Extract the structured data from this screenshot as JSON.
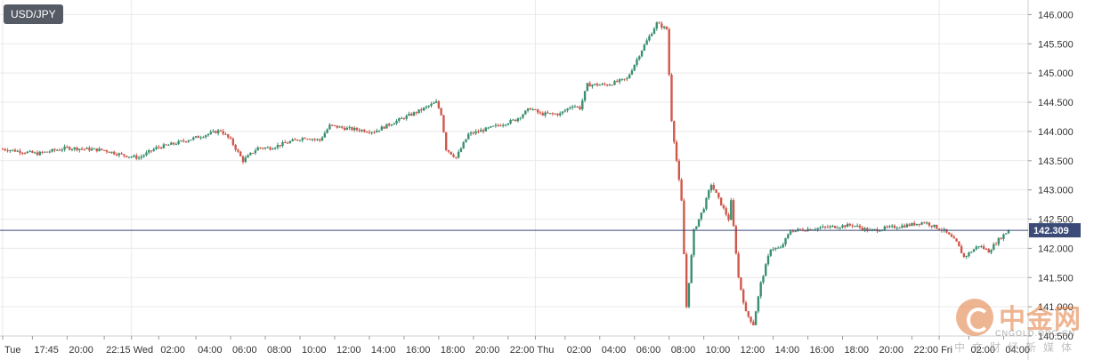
{
  "header": {
    "symbol": "USD/JPY"
  },
  "colors": {
    "up": "#3a8f6f",
    "down": "#d0584b",
    "last_line": "#3c4a78",
    "last_bg": "#3c4a78",
    "grid": "#e9e9e9",
    "text": "#333333"
  },
  "chart_data": {
    "type": "candlestick",
    "title": "USD/JPY",
    "last_price_label": "142.309",
    "last_price": 142.309,
    "ylim": [
      140.5,
      146.25
    ],
    "y_ticks": [
      {
        "value": 146.0,
        "label": "146.000"
      },
      {
        "value": 145.5,
        "label": "145.500"
      },
      {
        "value": 145.0,
        "label": "145.000"
      },
      {
        "value": 144.5,
        "label": "144.500"
      },
      {
        "value": 144.0,
        "label": "144.000"
      },
      {
        "value": 143.5,
        "label": "143.500"
      },
      {
        "value": 143.0,
        "label": "143.000"
      },
      {
        "value": 142.5,
        "label": "142.500"
      },
      {
        "value": 142.0,
        "label": "142.000"
      },
      {
        "value": 141.5,
        "label": "141.500"
      },
      {
        "value": 141.0,
        "label": "141.000"
      },
      {
        "value": 140.5,
        "label": "140.500"
      }
    ],
    "x_ticks": [
      {
        "index": 0,
        "label": "Tue"
      },
      {
        "index": 12,
        "label": "17:45"
      },
      {
        "index": 26,
        "label": "20:00"
      },
      {
        "index": 41,
        "label": "22:15"
      },
      {
        "index": 52,
        "label": "Wed"
      },
      {
        "index": 63,
        "label": "02:00"
      },
      {
        "index": 78,
        "label": "04:00"
      },
      {
        "index": 92,
        "label": "06:00"
      },
      {
        "index": 106,
        "label": "08:00"
      },
      {
        "index": 120,
        "label": "10:00"
      },
      {
        "index": 134,
        "label": "12:00"
      },
      {
        "index": 148,
        "label": "14:00"
      },
      {
        "index": 162,
        "label": "16:00"
      },
      {
        "index": 176,
        "label": "18:00"
      },
      {
        "index": 190,
        "label": "20:00"
      },
      {
        "index": 204,
        "label": "22:00"
      },
      {
        "index": 215,
        "label": "Thu"
      },
      {
        "index": 227,
        "label": "02:00"
      },
      {
        "index": 241,
        "label": "04:00"
      },
      {
        "index": 255,
        "label": "06:00"
      },
      {
        "index": 269,
        "label": "08:00"
      },
      {
        "index": 283,
        "label": "10:00"
      },
      {
        "index": 297,
        "label": "12:00"
      },
      {
        "index": 311,
        "label": "14:00"
      },
      {
        "index": 325,
        "label": "16:00"
      },
      {
        "index": 339,
        "label": "18:00"
      },
      {
        "index": 353,
        "label": "20:00"
      },
      {
        "index": 367,
        "label": "22:00"
      },
      {
        "index": 378,
        "label": "Fri"
      },
      {
        "index": 390,
        "label": "02:00"
      },
      {
        "index": 404,
        "label": "04:00"
      }
    ],
    "candles_count": 407,
    "price_path": [
      [
        0,
        143.7
      ],
      [
        14,
        143.62
      ],
      [
        26,
        143.72
      ],
      [
        41,
        143.68
      ],
      [
        48,
        143.6
      ],
      [
        55,
        143.55
      ],
      [
        62,
        143.72
      ],
      [
        70,
        143.8
      ],
      [
        80,
        143.92
      ],
      [
        88,
        144.02
      ],
      [
        92,
        143.85
      ],
      [
        97,
        143.5
      ],
      [
        103,
        143.72
      ],
      [
        108,
        143.72
      ],
      [
        114,
        143.8
      ],
      [
        122,
        143.9
      ],
      [
        128,
        143.85
      ],
      [
        132,
        144.1
      ],
      [
        139,
        144.05
      ],
      [
        150,
        144.0
      ],
      [
        160,
        144.2
      ],
      [
        168,
        144.35
      ],
      [
        175,
        144.5
      ],
      [
        177,
        144.3
      ],
      [
        179,
        143.7
      ],
      [
        183,
        143.55
      ],
      [
        188,
        143.95
      ],
      [
        196,
        144.05
      ],
      [
        207,
        144.2
      ],
      [
        213,
        144.4
      ],
      [
        217,
        144.3
      ],
      [
        225,
        144.3
      ],
      [
        230,
        144.45
      ],
      [
        233,
        144.4
      ],
      [
        236,
        144.8
      ],
      [
        244,
        144.8
      ],
      [
        252,
        144.9
      ],
      [
        258,
        145.4
      ],
      [
        264,
        145.85
      ],
      [
        268,
        145.75
      ],
      [
        270,
        144.2
      ],
      [
        274,
        142.8
      ],
      [
        276,
        141.0
      ],
      [
        279,
        142.3
      ],
      [
        283,
        142.7
      ],
      [
        286,
        143.1
      ],
      [
        293,
        142.5
      ],
      [
        294,
        142.8
      ],
      [
        297,
        141.5
      ],
      [
        300,
        140.9
      ],
      [
        303,
        140.7
      ],
      [
        306,
        141.4
      ],
      [
        310,
        142.0
      ],
      [
        314,
        142.0
      ],
      [
        318,
        142.3
      ],
      [
        330,
        142.35
      ],
      [
        343,
        142.4
      ],
      [
        350,
        142.3
      ],
      [
        357,
        142.35
      ],
      [
        366,
        142.4
      ],
      [
        372,
        142.45
      ],
      [
        380,
        142.3
      ],
      [
        385,
        142.1
      ],
      [
        388,
        141.85
      ],
      [
        394,
        142.05
      ],
      [
        398,
        141.95
      ],
      [
        402,
        142.15
      ],
      [
        406,
        142.31
      ]
    ]
  },
  "watermark": {
    "cn": "中金网",
    "en": "CNGOLD.ORG.CN",
    "sub": "中文财经新媒体"
  }
}
